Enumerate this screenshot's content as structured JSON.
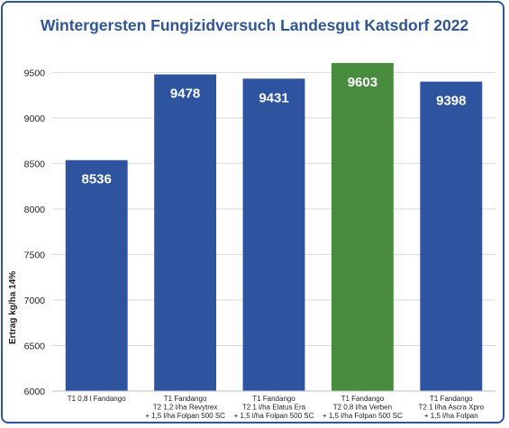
{
  "chart_data": {
    "type": "bar",
    "title": "Wintergersten Fungizidversuch Landesgut Katsdorf 2022",
    "xlabel": "",
    "ylabel": "Ertrag kg/ha 14%",
    "ylim": [
      6000,
      9800
    ],
    "yticks": [
      6000,
      6500,
      7000,
      7500,
      8000,
      8500,
      9000,
      9500
    ],
    "grid": true,
    "categories": [
      [
        "T1 0,8 l Fandango"
      ],
      [
        "T1 Fandango",
        "T2 1,2 l/ha Revytrex",
        "+ 1,5 l/ha Folpan 500 SC"
      ],
      [
        "T1 Fandango",
        "T2 1 l/ha Elatus Era",
        "+ 1,5 l/ha Folpan 500 SC"
      ],
      [
        "T1 Fandango",
        "T2 0,8 l/ha Verben",
        "+ 1,5 l/ha Folpan 500 SC"
      ],
      [
        "T1 Fandango",
        "T2 1 l/ha Ascra Xpro",
        "+ 1,5 l/ha Folpan"
      ]
    ],
    "values": [
      8536,
      9478,
      9431,
      9603,
      9398
    ],
    "data_labels": [
      "8536",
      "9478",
      "9431",
      "9603",
      "9398"
    ],
    "colors": [
      "#2e54a0",
      "#2e54a0",
      "#2e54a0",
      "#4a8c3f",
      "#2e54a0"
    ]
  }
}
